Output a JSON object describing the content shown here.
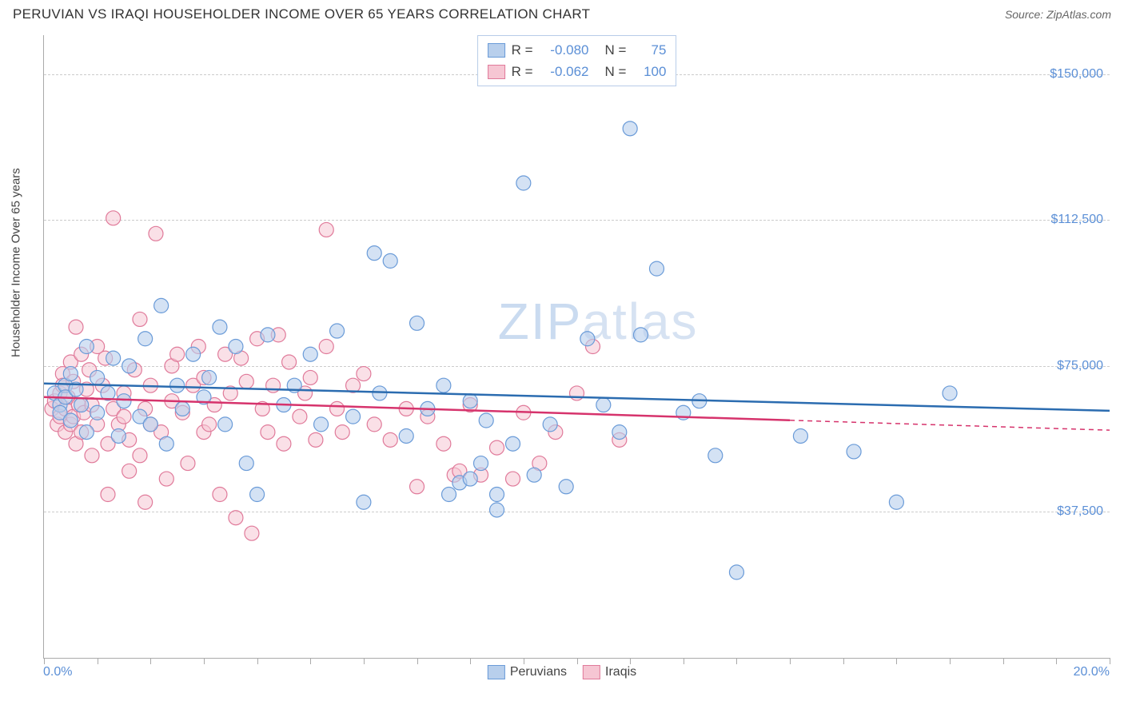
{
  "header": {
    "title": "PERUVIAN VS IRAQI HOUSEHOLDER INCOME OVER 65 YEARS CORRELATION CHART",
    "source": "Source: ZipAtlas.com"
  },
  "chart": {
    "type": "scatter",
    "ylabel": "Householder Income Over 65 years",
    "watermark_a": "ZIP",
    "watermark_b": "atlas",
    "background_color": "#ffffff",
    "grid_color": "#cccccc",
    "axis_color": "#aaaaaa",
    "tick_label_color": "#5b8fd6",
    "xlim": [
      0,
      20
    ],
    "ylim": [
      0,
      160000
    ],
    "x_tick_label_min": "0.0%",
    "x_tick_label_max": "20.0%",
    "x_minor_ticks": [
      0,
      1,
      2,
      3,
      4,
      5,
      6,
      7,
      8,
      9,
      10,
      11,
      12,
      13,
      14,
      15,
      16,
      17,
      18,
      19,
      20
    ],
    "y_gridlines": [
      {
        "value": 37500,
        "label": "$37,500"
      },
      {
        "value": 75000,
        "label": "$75,000"
      },
      {
        "value": 112500,
        "label": "$112,500"
      },
      {
        "value": 150000,
        "label": "$150,000"
      }
    ],
    "marker_radius": 9,
    "marker_stroke_width": 1.2,
    "trend_line_width": 2.5,
    "series": [
      {
        "name": "Peruvians",
        "fill": "#b8cfec",
        "stroke": "#6a9bd8",
        "fill_opacity": 0.6,
        "trend": {
          "y_at_x0": 70500,
          "y_at_xmax": 63500,
          "x_solid_end": 20,
          "line_color": "#2b6cb0"
        },
        "points": [
          [
            0.2,
            68000
          ],
          [
            0.3,
            65000
          ],
          [
            0.3,
            63000
          ],
          [
            0.4,
            70000
          ],
          [
            0.4,
            67000
          ],
          [
            0.5,
            73000
          ],
          [
            0.5,
            61000
          ],
          [
            0.6,
            69000
          ],
          [
            0.7,
            65000
          ],
          [
            0.8,
            80000
          ],
          [
            0.8,
            58000
          ],
          [
            1.0,
            72000
          ],
          [
            1.0,
            63000
          ],
          [
            1.2,
            68000
          ],
          [
            1.3,
            77000
          ],
          [
            1.4,
            57000
          ],
          [
            1.5,
            66000
          ],
          [
            1.6,
            75000
          ],
          [
            1.8,
            62000
          ],
          [
            1.9,
            82000
          ],
          [
            2.0,
            60000
          ],
          [
            2.2,
            90500
          ],
          [
            2.3,
            55000
          ],
          [
            2.5,
            70000
          ],
          [
            2.6,
            64000
          ],
          [
            2.8,
            78000
          ],
          [
            3.0,
            67000
          ],
          [
            3.1,
            72000
          ],
          [
            3.3,
            85000
          ],
          [
            3.4,
            60000
          ],
          [
            3.6,
            80000
          ],
          [
            3.8,
            50000
          ],
          [
            4.0,
            42000
          ],
          [
            4.2,
            83000
          ],
          [
            4.5,
            65000
          ],
          [
            4.7,
            70000
          ],
          [
            5.0,
            78000
          ],
          [
            5.2,
            60000
          ],
          [
            5.5,
            84000
          ],
          [
            5.8,
            62000
          ],
          [
            6.0,
            40000
          ],
          [
            6.2,
            104000
          ],
          [
            6.3,
            68000
          ],
          [
            6.5,
            102000
          ],
          [
            6.8,
            57000
          ],
          [
            7.0,
            86000
          ],
          [
            7.2,
            64000
          ],
          [
            7.5,
            70000
          ],
          [
            7.6,
            42000
          ],
          [
            7.8,
            45000
          ],
          [
            8.0,
            46000
          ],
          [
            8.0,
            66000
          ],
          [
            8.2,
            50000
          ],
          [
            8.3,
            61000
          ],
          [
            8.5,
            38000
          ],
          [
            8.5,
            42000
          ],
          [
            8.8,
            55000
          ],
          [
            9.0,
            122000
          ],
          [
            9.2,
            47000
          ],
          [
            9.5,
            60000
          ],
          [
            9.8,
            44000
          ],
          [
            10.2,
            82000
          ],
          [
            10.5,
            65000
          ],
          [
            10.8,
            58000
          ],
          [
            11.0,
            136000
          ],
          [
            11.2,
            83000
          ],
          [
            11.5,
            100000
          ],
          [
            12.0,
            63000
          ],
          [
            12.3,
            66000
          ],
          [
            12.6,
            52000
          ],
          [
            13.0,
            22000
          ],
          [
            14.2,
            57000
          ],
          [
            15.2,
            53000
          ],
          [
            16.0,
            40000
          ],
          [
            17.0,
            68000
          ]
        ]
      },
      {
        "name": "Iraqis",
        "fill": "#f6c6d3",
        "stroke": "#e07a9a",
        "fill_opacity": 0.55,
        "trend": {
          "y_at_x0": 67000,
          "y_at_xmax": 58500,
          "x_solid_end": 14,
          "line_color": "#d6336c"
        },
        "points": [
          [
            0.15,
            64000
          ],
          [
            0.2,
            66000
          ],
          [
            0.25,
            60000
          ],
          [
            0.3,
            62000
          ],
          [
            0.3,
            68000
          ],
          [
            0.35,
            73000
          ],
          [
            0.35,
            70000
          ],
          [
            0.4,
            58000
          ],
          [
            0.4,
            64000
          ],
          [
            0.45,
            67000
          ],
          [
            0.5,
            60000
          ],
          [
            0.5,
            76000
          ],
          [
            0.55,
            62000
          ],
          [
            0.55,
            71000
          ],
          [
            0.6,
            85000
          ],
          [
            0.6,
            55000
          ],
          [
            0.65,
            65000
          ],
          [
            0.7,
            58000
          ],
          [
            0.7,
            78000
          ],
          [
            0.75,
            63000
          ],
          [
            0.8,
            69000
          ],
          [
            0.85,
            74000
          ],
          [
            0.9,
            52000
          ],
          [
            0.9,
            65000
          ],
          [
            1.0,
            60000
          ],
          [
            1.0,
            80000
          ],
          [
            1.1,
            70000
          ],
          [
            1.15,
            77000
          ],
          [
            1.2,
            55000
          ],
          [
            1.2,
            42000
          ],
          [
            1.3,
            64000
          ],
          [
            1.3,
            113000
          ],
          [
            1.4,
            60000
          ],
          [
            1.5,
            62000
          ],
          [
            1.5,
            68000
          ],
          [
            1.6,
            48000
          ],
          [
            1.6,
            56000
          ],
          [
            1.7,
            74000
          ],
          [
            1.8,
            52000
          ],
          [
            1.8,
            87000
          ],
          [
            1.9,
            40000
          ],
          [
            1.9,
            64000
          ],
          [
            2.0,
            70000
          ],
          [
            2.0,
            60000
          ],
          [
            2.1,
            109000
          ],
          [
            2.2,
            58000
          ],
          [
            2.3,
            46000
          ],
          [
            2.4,
            66000
          ],
          [
            2.4,
            75000
          ],
          [
            2.5,
            78000
          ],
          [
            2.6,
            63000
          ],
          [
            2.7,
            50000
          ],
          [
            2.8,
            70000
          ],
          [
            2.9,
            80000
          ],
          [
            3.0,
            58000
          ],
          [
            3.0,
            72000
          ],
          [
            3.1,
            60000
          ],
          [
            3.2,
            65000
          ],
          [
            3.3,
            42000
          ],
          [
            3.4,
            78000
          ],
          [
            3.5,
            68000
          ],
          [
            3.6,
            36000
          ],
          [
            3.7,
            77000
          ],
          [
            3.8,
            71000
          ],
          [
            3.9,
            32000
          ],
          [
            4.0,
            82000
          ],
          [
            4.1,
            64000
          ],
          [
            4.2,
            58000
          ],
          [
            4.3,
            70000
          ],
          [
            4.4,
            83000
          ],
          [
            4.5,
            55000
          ],
          [
            4.6,
            76000
          ],
          [
            4.8,
            62000
          ],
          [
            4.9,
            68000
          ],
          [
            5.0,
            72000
          ],
          [
            5.1,
            56000
          ],
          [
            5.3,
            80000
          ],
          [
            5.3,
            110000
          ],
          [
            5.5,
            64000
          ],
          [
            5.6,
            58000
          ],
          [
            5.8,
            70000
          ],
          [
            6.0,
            73000
          ],
          [
            6.2,
            60000
          ],
          [
            6.5,
            56000
          ],
          [
            6.8,
            64000
          ],
          [
            7.0,
            44000
          ],
          [
            7.2,
            62000
          ],
          [
            7.5,
            55000
          ],
          [
            7.7,
            47000
          ],
          [
            7.8,
            48000
          ],
          [
            8.0,
            65000
          ],
          [
            8.2,
            47000
          ],
          [
            8.5,
            54000
          ],
          [
            8.8,
            46000
          ],
          [
            9.0,
            63000
          ],
          [
            9.3,
            50000
          ],
          [
            9.6,
            58000
          ],
          [
            10.0,
            68000
          ],
          [
            10.3,
            80000
          ],
          [
            10.8,
            56000
          ]
        ]
      }
    ],
    "stats_box": {
      "rows": [
        {
          "swatch_fill": "#b8cfec",
          "swatch_stroke": "#6a9bd8",
          "r_label": "R =",
          "r_value": "-0.080",
          "n_label": "N =",
          "n_value": "75"
        },
        {
          "swatch_fill": "#f6c6d3",
          "swatch_stroke": "#e07a9a",
          "r_label": "R =",
          "r_value": "-0.062",
          "n_label": "N =",
          "n_value": "100"
        }
      ]
    },
    "legend": [
      {
        "swatch_fill": "#b8cfec",
        "swatch_stroke": "#6a9bd8",
        "label": "Peruvians"
      },
      {
        "swatch_fill": "#f6c6d3",
        "swatch_stroke": "#e07a9a",
        "label": "Iraqis"
      }
    ]
  }
}
